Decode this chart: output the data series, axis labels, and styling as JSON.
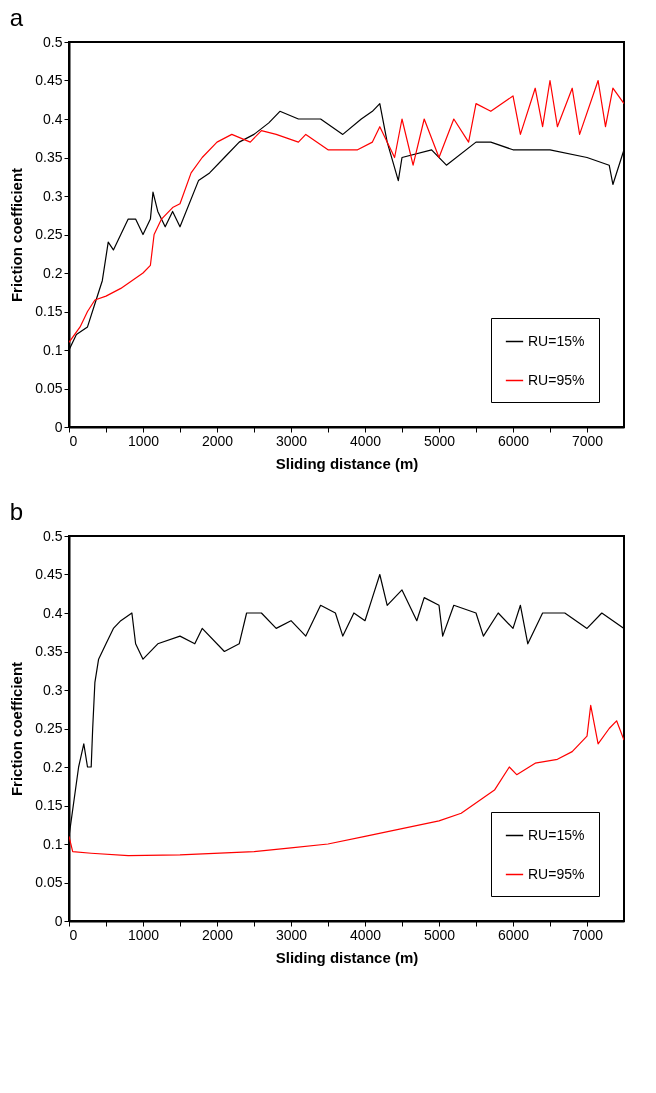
{
  "chart_data": [
    {
      "type": "line",
      "title": "a",
      "xlabel": "Sliding distance (m)",
      "ylabel": "Friction coefficient",
      "xlim": [
        0,
        7500
      ],
      "ylim": [
        0,
        0.5
      ],
      "xticks": [
        0,
        {
          "value": 500,
          "label": null
        },
        1000,
        {
          "value": 1500,
          "label": null
        },
        2000,
        {
          "value": 2500,
          "label": null
        },
        3000,
        {
          "value": 3500,
          "label": null
        },
        4000,
        {
          "value": 4500,
          "label": null
        },
        5000,
        {
          "value": 5500,
          "label": null
        },
        6000,
        {
          "value": 6500,
          "label": null
        },
        7000
      ],
      "yticks": [
        0,
        0.05,
        0.1,
        0.15,
        0.2,
        0.25,
        0.3,
        0.35,
        0.4,
        0.45,
        0.5
      ],
      "legend": "bottom right",
      "grid": false,
      "series": [
        {
          "name": "RU=15%",
          "color": "#000000",
          "x": [
            0,
            100,
            250,
            350,
            450,
            530,
            600,
            700,
            800,
            900,
            1000,
            1100,
            1135,
            1200,
            1300,
            1400,
            1500,
            1750,
            1900,
            2100,
            2300,
            2500,
            2700,
            2850,
            3100,
            3400,
            3700,
            3950,
            4100,
            4200,
            4300,
            4450,
            4500,
            4900,
            5100,
            5500,
            5700,
            6000,
            6500,
            7000,
            7300,
            7350,
            7500
          ],
          "values": [
            0.1,
            0.12,
            0.13,
            0.16,
            0.19,
            0.24,
            0.23,
            0.25,
            0.27,
            0.27,
            0.25,
            0.27,
            0.305,
            0.28,
            0.26,
            0.28,
            0.26,
            0.32,
            0.33,
            0.35,
            0.37,
            0.38,
            0.395,
            0.41,
            0.4,
            0.4,
            0.38,
            0.4,
            0.41,
            0.42,
            0.37,
            0.32,
            0.35,
            0.36,
            0.34,
            0.37,
            0.37,
            0.36,
            0.36,
            0.35,
            0.34,
            0.315,
            0.36
          ]
        },
        {
          "name": "RU=95%",
          "color": "#ff0000",
          "x": [
            0,
            150,
            250,
            350,
            500,
            700,
            850,
            1000,
            1100,
            1150,
            1250,
            1400,
            1500,
            1650,
            1800,
            2000,
            2200,
            2450,
            2600,
            2800,
            3100,
            3200,
            3500,
            3900,
            4100,
            4200,
            4400,
            4500,
            4650,
            4800,
            5000,
            5200,
            5400,
            5500,
            5700,
            6000,
            6100,
            6300,
            6400,
            6500,
            6600,
            6800,
            6900,
            7150,
            7250,
            7350,
            7500
          ],
          "values": [
            0.11,
            0.13,
            0.15,
            0.165,
            0.17,
            0.18,
            0.19,
            0.2,
            0.21,
            0.25,
            0.27,
            0.285,
            0.29,
            0.33,
            0.35,
            0.37,
            0.38,
            0.37,
            0.385,
            0.38,
            0.37,
            0.38,
            0.36,
            0.36,
            0.37,
            0.39,
            0.35,
            0.4,
            0.34,
            0.4,
            0.35,
            0.4,
            0.37,
            0.42,
            0.41,
            0.43,
            0.38,
            0.44,
            0.39,
            0.45,
            0.39,
            0.44,
            0.38,
            0.45,
            0.39,
            0.44,
            0.42
          ]
        }
      ]
    },
    {
      "type": "line",
      "title": "b",
      "xlabel": "Sliding distance (m)",
      "ylabel": "Friction coefficient",
      "xlim": [
        0,
        7500
      ],
      "ylim": [
        0,
        0.5
      ],
      "xticks": [
        0,
        {
          "value": 500,
          "label": null
        },
        1000,
        {
          "value": 1500,
          "label": null
        },
        2000,
        {
          "value": 2500,
          "label": null
        },
        3000,
        {
          "value": 3500,
          "label": null
        },
        4000,
        {
          "value": 4500,
          "label": null
        },
        5000,
        {
          "value": 5500,
          "label": null
        },
        6000,
        {
          "value": 6500,
          "label": null
        },
        7000
      ],
      "yticks": [
        0,
        0.05,
        0.1,
        0.15,
        0.2,
        0.25,
        0.3,
        0.35,
        0.4,
        0.45,
        0.5
      ],
      "legend": "bottom right",
      "grid": false,
      "series": [
        {
          "name": "RU=15%",
          "color": "#000000",
          "x": [
            0,
            130,
            200,
            250,
            300,
            320,
            350,
            400,
            500,
            600,
            700,
            850,
            900,
            1000,
            1200,
            1500,
            1700,
            1800,
            2100,
            2300,
            2400,
            2600,
            2800,
            3000,
            3200,
            3400,
            3600,
            3700,
            3850,
            4000,
            4100,
            4200,
            4300,
            4500,
            4700,
            4800,
            5000,
            5050,
            5200,
            5500,
            5600,
            5800,
            6000,
            6100,
            6200,
            6400,
            6700,
            7000,
            7200,
            7500
          ],
          "values": [
            0.11,
            0.2,
            0.23,
            0.2,
            0.2,
            0.25,
            0.31,
            0.34,
            0.36,
            0.38,
            0.39,
            0.4,
            0.36,
            0.34,
            0.36,
            0.37,
            0.36,
            0.38,
            0.35,
            0.36,
            0.4,
            0.4,
            0.38,
            0.39,
            0.37,
            0.41,
            0.4,
            0.37,
            0.4,
            0.39,
            0.42,
            0.45,
            0.41,
            0.43,
            0.39,
            0.42,
            0.41,
            0.37,
            0.41,
            0.4,
            0.37,
            0.4,
            0.38,
            0.41,
            0.36,
            0.4,
            0.4,
            0.38,
            0.4,
            0.38
          ]
        },
        {
          "name": "RU=95%",
          "color": "#ff0000",
          "x": [
            0,
            50,
            300,
            800,
            1500,
            2500,
            3000,
            3500,
            4000,
            4500,
            5000,
            5300,
            5600,
            5750,
            5950,
            6050,
            6300,
            6600,
            6800,
            7000,
            7050,
            7150,
            7300,
            7400,
            7500
          ],
          "values": [
            0.11,
            0.09,
            0.088,
            0.085,
            0.086,
            0.09,
            0.095,
            0.1,
            0.11,
            0.12,
            0.13,
            0.14,
            0.16,
            0.17,
            0.2,
            0.19,
            0.205,
            0.21,
            0.22,
            0.24,
            0.28,
            0.23,
            0.25,
            0.26,
            0.235
          ]
        }
      ]
    }
  ]
}
